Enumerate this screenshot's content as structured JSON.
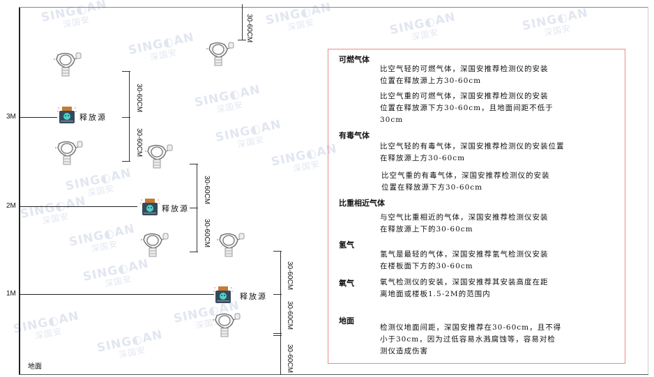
{
  "watermark": {
    "brand": "SINGOAN",
    "cn": "深国安"
  },
  "levels": {
    "m3": "3M",
    "m2": "2M",
    "m1": "1M",
    "ground": "地面"
  },
  "dimension_label": "30-60CM",
  "source_label": "释放源",
  "legend": {
    "sections": [
      {
        "title": "可燃气体",
        "paragraphs": [
          "比空气轻的可燃气体，深国安推荐检测仪的安装\n位置在释放源上方30-60cm",
          "比空气重的可燃气体，深国安推荐检测仪的安装\n位置在释放源下方30-60cm，且地面间距不低于\n30cm"
        ]
      },
      {
        "title": "有毒气体",
        "paragraphs": [
          "比空气轻的有毒气体，深国安推荐检测仪的安装位置\n在释放源上方30-60cm",
          "比空气重的有毒气体，深国安推荐检测仪的安装\n位置在释放源下方30-60cm"
        ]
      },
      {
        "title": "比重相近气体",
        "paragraphs": [
          "与空气比重相近的气体，深国安推荐检测仪安装\n在释放源上下的30-60cm"
        ]
      },
      {
        "title": "氢气",
        "paragraphs": [
          "氢气是最轻的气体，深国安推荐氢气检测仪安装\n在楼板面下方的30-60cm"
        ]
      },
      {
        "title": "氧气",
        "paragraphs": [
          "氧气检测仪的安装，深国安推荐其安装高度在距\n离地面或楼板1.5-2M的范围内"
        ]
      },
      {
        "title": "地面",
        "paragraphs": [
          "检测仪地面间距，深国安推荐在30-60cm，且不得\n小于30cm，因为过低容易水溅腐蚀等，容易对检\n测仪造成伤害"
        ]
      }
    ]
  }
}
